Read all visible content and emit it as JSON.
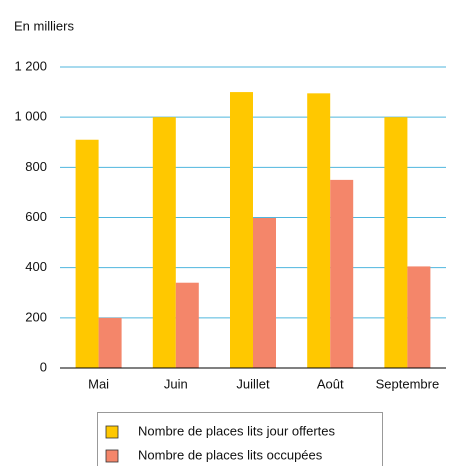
{
  "chart_data": {
    "type": "bar",
    "y_axis_label": "En milliers",
    "categories": [
      "Mai",
      "Juin",
      "Juillet",
      "Août",
      "Septembre"
    ],
    "series": [
      {
        "name": "Nombre de places lits jour offertes",
        "color": "#ffc800",
        "values": [
          910,
          1000,
          1100,
          1095,
          1000
        ]
      },
      {
        "name": "Nombre de places lits occupées",
        "color": "#f4866a",
        "values": [
          200,
          340,
          598,
          750,
          405
        ]
      }
    ],
    "ylim": [
      0,
      1200
    ],
    "yticks": [
      0,
      200,
      400,
      600,
      800,
      {
        "value": 1000,
        "label": "1 000"
      },
      {
        "value": 1200,
        "label": "1 200"
      }
    ],
    "grid": true,
    "legend": "bottom"
  }
}
